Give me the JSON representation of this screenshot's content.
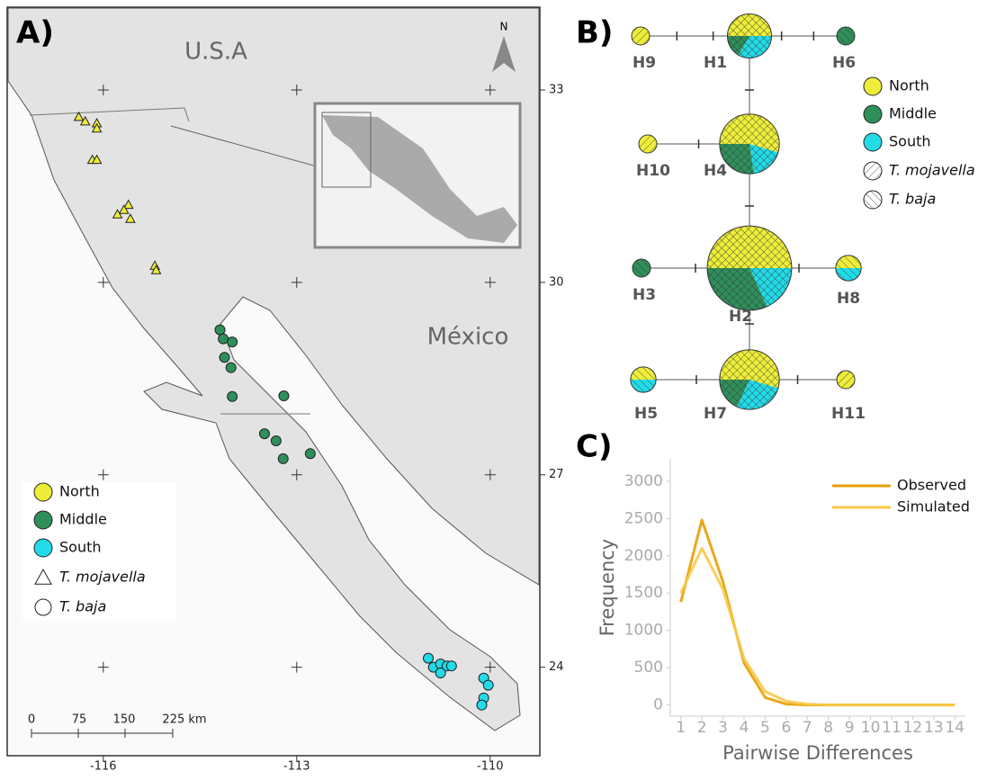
{
  "panels": [
    "A)",
    "B)",
    "C)"
  ],
  "legend": {
    "groups": [
      {
        "name": "North",
        "color": "#eeee3a"
      },
      {
        "name": "Middle",
        "color": "#2f8f5b"
      },
      {
        "name": "South",
        "color": "#22dbe8"
      }
    ],
    "species": [
      "T. mojavella",
      "T. baja"
    ]
  },
  "map": {
    "usa": "U.S.A",
    "mexico": "México",
    "north": "N",
    "lonlim": [
      -117.49,
      -109.23
    ],
    "latlim": [
      22.62,
      34.29
    ],
    "lonticks": [
      -116,
      -113,
      -110
    ],
    "latticks": [
      33,
      30,
      27,
      24
    ],
    "scale_labels": [
      "0",
      "75",
      "150",
      "225 km"
    ],
    "points": [
      {
        "lon": -116.38,
        "lat": 32.58,
        "group": 0,
        "species": 0
      },
      {
        "lon": -116.28,
        "lat": 32.51,
        "group": 0,
        "species": 0
      },
      {
        "lon": -116.1,
        "lat": 32.48,
        "group": 0,
        "species": 0
      },
      {
        "lon": -116.1,
        "lat": 32.4,
        "group": 0,
        "species": 0
      },
      {
        "lon": -116.17,
        "lat": 31.91,
        "group": 0,
        "species": 0
      },
      {
        "lon": -116.1,
        "lat": 31.91,
        "group": 0,
        "species": 0
      },
      {
        "lon": -115.61,
        "lat": 31.21,
        "group": 0,
        "species": 0
      },
      {
        "lon": -115.68,
        "lat": 31.13,
        "group": 0,
        "species": 0
      },
      {
        "lon": -115.78,
        "lat": 31.06,
        "group": 0,
        "species": 0
      },
      {
        "lon": -115.58,
        "lat": 30.99,
        "group": 0,
        "species": 0
      },
      {
        "lon": -115.2,
        "lat": 30.26,
        "group": 0,
        "species": 0
      },
      {
        "lon": -115.18,
        "lat": 30.19,
        "group": 0,
        "species": 0
      },
      {
        "lon": -114.19,
        "lat": 29.26,
        "group": 1,
        "species": 1
      },
      {
        "lon": -114.14,
        "lat": 29.12,
        "group": 1,
        "species": 1
      },
      {
        "lon": -114.0,
        "lat": 29.07,
        "group": 1,
        "species": 1
      },
      {
        "lon": -114.12,
        "lat": 28.83,
        "group": 1,
        "species": 1
      },
      {
        "lon": -114.02,
        "lat": 28.67,
        "group": 1,
        "species": 1
      },
      {
        "lon": -114.0,
        "lat": 28.22,
        "group": 1,
        "species": 1
      },
      {
        "lon": -113.2,
        "lat": 28.23,
        "group": 1,
        "species": 1
      },
      {
        "lon": -113.5,
        "lat": 27.64,
        "group": 1,
        "species": 1
      },
      {
        "lon": -113.32,
        "lat": 27.53,
        "group": 1,
        "species": 1
      },
      {
        "lon": -113.21,
        "lat": 27.25,
        "group": 1,
        "species": 1
      },
      {
        "lon": -112.79,
        "lat": 27.33,
        "group": 1,
        "species": 1
      },
      {
        "lon": -110.96,
        "lat": 24.14,
        "group": 2,
        "species": 1
      },
      {
        "lon": -110.88,
        "lat": 24.0,
        "group": 2,
        "species": 1
      },
      {
        "lon": -110.77,
        "lat": 24.05,
        "group": 2,
        "species": 1
      },
      {
        "lon": -110.67,
        "lat": 24.02,
        "group": 2,
        "species": 1
      },
      {
        "lon": -110.6,
        "lat": 24.02,
        "group": 2,
        "species": 1
      },
      {
        "lon": -110.77,
        "lat": 23.91,
        "group": 2,
        "species": 1
      },
      {
        "lon": -110.1,
        "lat": 23.83,
        "group": 2,
        "species": 1
      },
      {
        "lon": -110.03,
        "lat": 23.72,
        "group": 2,
        "species": 1
      },
      {
        "lon": -110.1,
        "lat": 23.52,
        "group": 2,
        "species": 1
      },
      {
        "lon": -110.13,
        "lat": 23.41,
        "group": 2,
        "species": 1
      }
    ]
  },
  "network": {
    "nodes": [
      {
        "label": "H1",
        "counts": [
          3,
          1,
          2
        ],
        "species": [
          0,
          1
        ]
      },
      {
        "label": "H2",
        "counts": [
          11,
          7,
          4
        ],
        "species": [
          0,
          1
        ]
      },
      {
        "label": "H3",
        "counts": [
          0,
          1,
          0
        ],
        "species": [
          1
        ]
      },
      {
        "label": "H4",
        "counts": [
          6,
          3,
          2
        ],
        "species": [
          0,
          1
        ]
      },
      {
        "label": "H5",
        "counts": [
          1,
          0,
          1
        ],
        "species": [
          1
        ]
      },
      {
        "label": "H6",
        "counts": [
          0,
          1,
          0
        ],
        "species": [
          1
        ]
      },
      {
        "label": "H7",
        "counts": [
          6,
          2,
          3
        ],
        "species": [
          0,
          1
        ]
      },
      {
        "label": "H8",
        "counts": [
          1,
          0,
          1
        ],
        "species": [
          1
        ]
      },
      {
        "label": "H9",
        "counts": [
          1,
          0,
          0
        ],
        "species": [
          0
        ]
      },
      {
        "label": "H10",
        "counts": [
          1,
          0,
          0
        ],
        "species": [
          0
        ]
      },
      {
        "label": "H11",
        "counts": [
          1,
          0,
          0
        ],
        "species": [
          0
        ]
      }
    ]
  },
  "chart_data": {
    "type": "line",
    "xlabel": "Pairwise Differences",
    "ylabel": "Frequency",
    "x": [
      1,
      2,
      3,
      4,
      5,
      6,
      7,
      8,
      9,
      10,
      11,
      12,
      13,
      14
    ],
    "series": [
      {
        "name": "Observed",
        "color": "#e5a000",
        "values": [
          1380,
          2480,
          1650,
          560,
          100,
          10,
          0,
          0,
          0,
          0,
          0,
          0,
          0,
          0
        ]
      },
      {
        "name": "Simulated",
        "color": "#f7c94a",
        "values": [
          1500,
          2100,
          1550,
          620,
          180,
          50,
          10,
          0,
          0,
          0,
          0,
          0,
          0,
          0
        ]
      }
    ],
    "xlim": [
      0.5,
      14.5
    ],
    "xticks": [
      1,
      2,
      3,
      4,
      5,
      6,
      7,
      8,
      9,
      10,
      11,
      12,
      13,
      14
    ],
    "ylim": [
      -150,
      3300
    ],
    "yticks": [
      0,
      500,
      1000,
      1500,
      2000,
      2500,
      3000
    ]
  }
}
